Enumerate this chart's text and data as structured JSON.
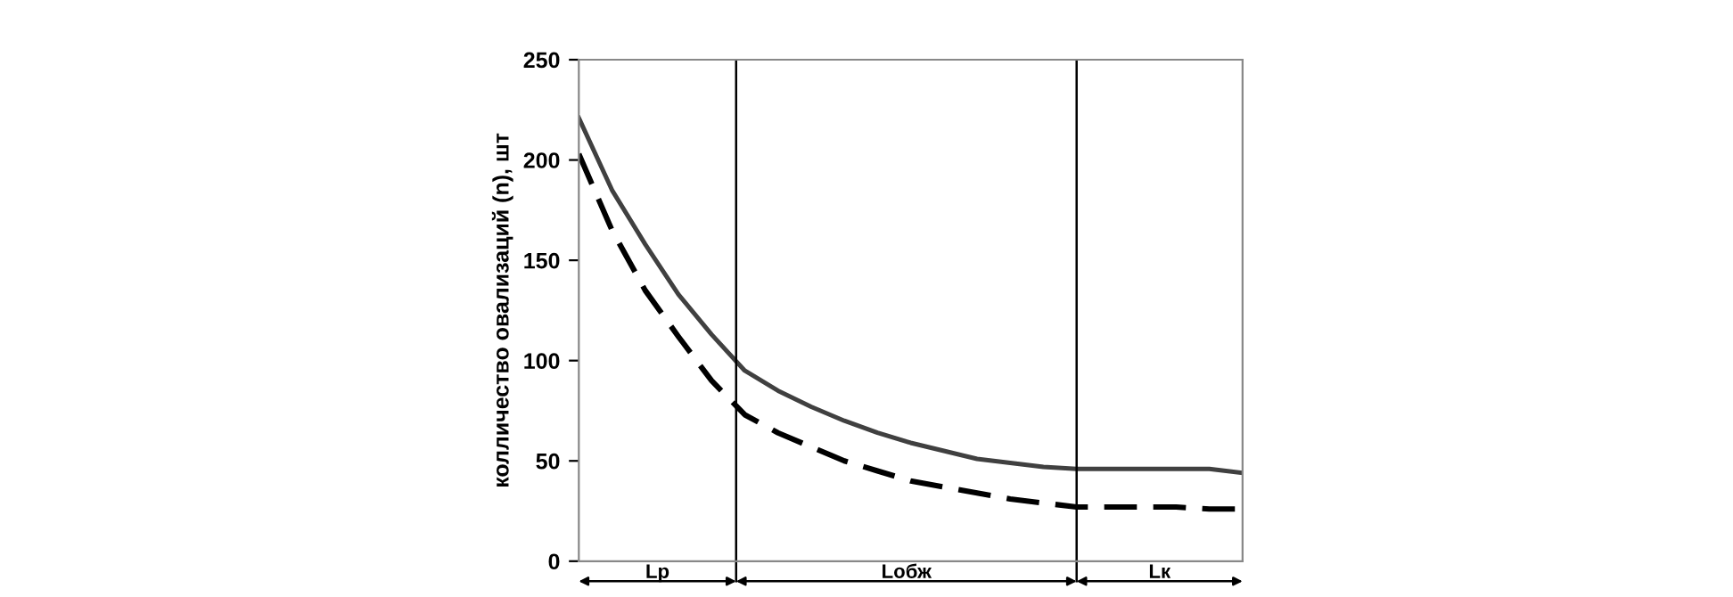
{
  "chart_data": {
    "type": "line",
    "ylabel": "колличество овализаций (n), шт",
    "categories": [
      null,
      null,
      null,
      null,
      null,
      null,
      null,
      null,
      null,
      null,
      null,
      null,
      null,
      null,
      null,
      null,
      null,
      null,
      null,
      null,
      null
    ],
    "series": [
      {
        "color": "#404040",
        "line_style": "solid",
        "values": [
          221,
          185,
          158,
          133,
          113,
          95,
          85,
          77,
          70,
          64,
          59,
          55,
          51,
          49,
          47,
          46,
          46,
          46,
          46,
          46,
          44
        ]
      },
      {
        "color": "#000000",
        "line_style": "dashed",
        "values": [
          203,
          165,
          135,
          112,
          90,
          73,
          64,
          57,
          50,
          45,
          40,
          37,
          34,
          31,
          29,
          27,
          27,
          27,
          27,
          26,
          26
        ]
      }
    ],
    "ylim": [
      0,
      250
    ],
    "yticks": [
      0,
      50,
      100,
      150,
      200,
      250
    ],
    "annotations": [
      "Lp",
      "Lобж",
      "Lк"
    ],
    "grid": false,
    "legend": false,
    "marker": "none",
    "tick_labels": "y"
  }
}
